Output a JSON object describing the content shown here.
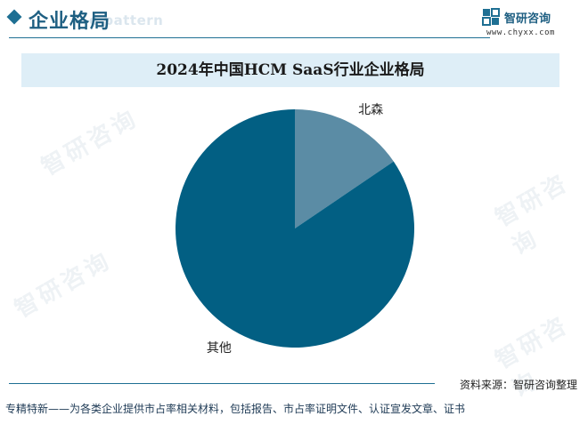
{
  "header": {
    "title": "企业格局",
    "ghost_text": "e pattern"
  },
  "brand": {
    "name": "智研咨询",
    "url": "www.chyxx.com"
  },
  "watermark_text": "智研咨询",
  "chart_data": {
    "type": "pie",
    "title": "2024年中国HCM SaaS行业企业格局",
    "slices": [
      {
        "label": "北森",
        "value": 15.5,
        "color": "#5b8ca5"
      },
      {
        "label": "其他",
        "value": 84.5,
        "color": "#025f83"
      }
    ],
    "start_angle": "12 o'clock",
    "direction": "clockwise"
  },
  "source": "资料来源：智研咨询整理",
  "footer": "专精特新——为各类企业提供市占率相关材料，包括报告、市占率证明文件、认证宣发文章、证书",
  "colors": {
    "accent": "#1e6f93",
    "title_band": "#deeef7"
  }
}
